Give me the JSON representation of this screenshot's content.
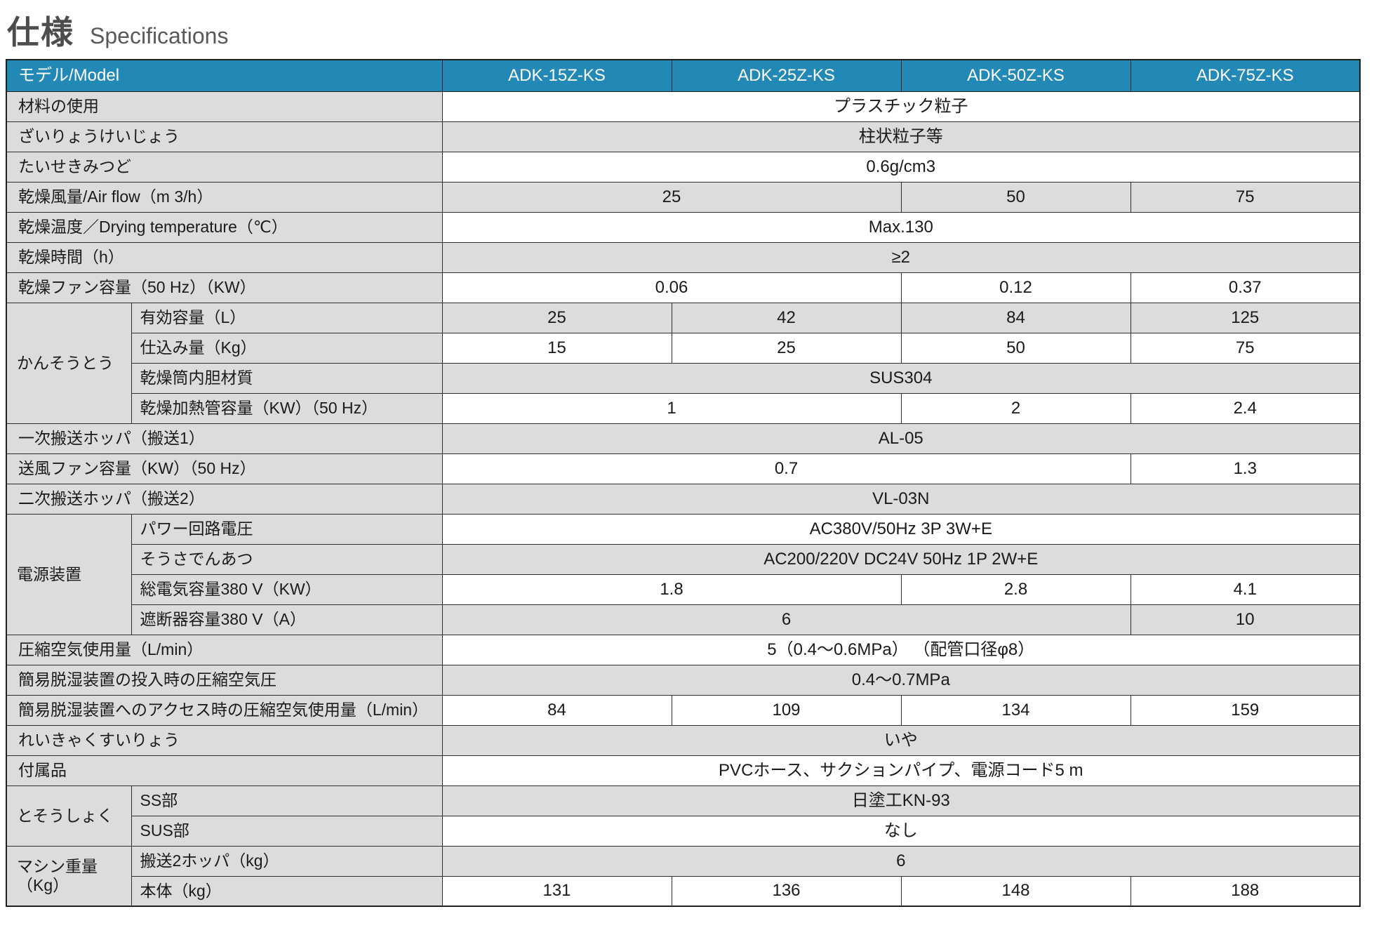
{
  "page": {
    "title_ja": "仕様",
    "title_en": "Specifications"
  },
  "colors": {
    "header_bg": "#2289b6",
    "header_text": "#ffffff",
    "row_gray": "#dcdcdc",
    "row_white": "#ffffff",
    "border": "#2e2e2e",
    "title_color": "#4d4d4d",
    "subtitle_color": "#595959"
  },
  "table": {
    "header": {
      "label": "モデル/Model",
      "models": [
        "ADK-15Z-KS",
        "ADK-25Z-KS",
        "ADK-50Z-KS",
        "ADK-75Z-KS"
      ]
    },
    "rows": [
      {
        "label": "材料の使用",
        "shade": "white",
        "cells": [
          {
            "text": "プラスチック粒子",
            "span": 4
          }
        ]
      },
      {
        "label": "ざいりょうけいじょう",
        "shade": "gray",
        "cells": [
          {
            "text": "柱状粒子等",
            "span": 4
          }
        ]
      },
      {
        "label": "たいせきみつど",
        "shade": "white",
        "cells": [
          {
            "text": "0.6g/cm3",
            "span": 4
          }
        ]
      },
      {
        "label": "乾燥風量/Air flow（m 3/h）",
        "shade": "gray",
        "cells": [
          {
            "text": "25",
            "span": 2
          },
          {
            "text": "50",
            "span": 1
          },
          {
            "text": "75",
            "span": 1
          }
        ]
      },
      {
        "label": "乾燥温度／Drying temperature（℃）",
        "shade": "white",
        "cells": [
          {
            "text": "Max.130",
            "span": 4
          }
        ]
      },
      {
        "label": "乾燥時間（h）",
        "shade": "gray",
        "cells": [
          {
            "text": "≥2",
            "span": 4
          }
        ]
      },
      {
        "label": "乾燥ファン容量（50 Hz）（KW）",
        "shade": "white",
        "cells": [
          {
            "text": "0.06",
            "span": 2
          },
          {
            "text": "0.12",
            "span": 1
          },
          {
            "text": "0.37",
            "span": 1
          }
        ]
      },
      {
        "group": {
          "label": "かんそうとう",
          "rowspan": 4
        },
        "label": "有効容量（L）",
        "shade": "gray",
        "cells": [
          {
            "text": "25",
            "span": 1
          },
          {
            "text": "42",
            "span": 1
          },
          {
            "text": "84",
            "span": 1
          },
          {
            "text": "125",
            "span": 1
          }
        ]
      },
      {
        "in_group": true,
        "label": "仕込み量（Kg）",
        "shade": "white",
        "cells": [
          {
            "text": "15",
            "span": 1
          },
          {
            "text": "25",
            "span": 1
          },
          {
            "text": "50",
            "span": 1
          },
          {
            "text": "75",
            "span": 1
          }
        ]
      },
      {
        "in_group": true,
        "label": "乾燥筒内胆材質",
        "shade": "gray",
        "cells": [
          {
            "text": "SUS304",
            "span": 4
          }
        ]
      },
      {
        "in_group": true,
        "label": "乾燥加熱管容量（KW）（50 Hz）",
        "shade": "white",
        "cells": [
          {
            "text": "1",
            "span": 2
          },
          {
            "text": "2",
            "span": 1
          },
          {
            "text": "2.4",
            "span": 1
          }
        ]
      },
      {
        "label": "一次搬送ホッパ（搬送1）",
        "shade": "gray",
        "cells": [
          {
            "text": "AL-05",
            "span": 4
          }
        ]
      },
      {
        "label": "送風ファン容量（KW）（50 Hz）",
        "shade": "white",
        "cells": [
          {
            "text": "0.7",
            "span": 3
          },
          {
            "text": "1.3",
            "span": 1
          }
        ]
      },
      {
        "label": "二次搬送ホッパ（搬送2）",
        "shade": "gray",
        "cells": [
          {
            "text": "VL-03N",
            "span": 4
          }
        ]
      },
      {
        "group": {
          "label": "電源装置",
          "rowspan": 4
        },
        "label": "パワー回路電圧",
        "shade": "white",
        "cells": [
          {
            "text": "AC380V/50Hz 3P 3W+E",
            "span": 4
          }
        ]
      },
      {
        "in_group": true,
        "label": "そうさでんあつ",
        "shade": "gray",
        "cells": [
          {
            "text": "AC200/220V DC24V 50Hz 1P 2W+E",
            "span": 4
          }
        ]
      },
      {
        "in_group": true,
        "label": "総電気容量380 V（KW）",
        "shade": "white",
        "cells": [
          {
            "text": "1.8",
            "span": 2
          },
          {
            "text": "2.8",
            "span": 1
          },
          {
            "text": "4.1",
            "span": 1
          }
        ]
      },
      {
        "in_group": true,
        "label": "遮断器容量380 V（A）",
        "shade": "gray",
        "cells": [
          {
            "text": "6",
            "span": 3
          },
          {
            "text": "10",
            "span": 1
          }
        ]
      },
      {
        "label": "圧縮空気使用量（L/min）",
        "shade": "white",
        "cells": [
          {
            "text": "5（0.4～0.6MPa） （配管口径φ8）",
            "span": 4
          }
        ]
      },
      {
        "label": "簡易脱湿装置の投入時の圧縮空気圧",
        "shade": "gray",
        "cells": [
          {
            "text": "0.4～0.7MPa",
            "span": 4
          }
        ]
      },
      {
        "label": "簡易脱湿装置へのアクセス時の圧縮空気使用量（L/min）",
        "shade": "white",
        "cells": [
          {
            "text": "84",
            "span": 1
          },
          {
            "text": "109",
            "span": 1
          },
          {
            "text": "134",
            "span": 1
          },
          {
            "text": "159",
            "span": 1
          }
        ]
      },
      {
        "label": "れいきゃくすいりょう",
        "shade": "gray",
        "cells": [
          {
            "text": "いや",
            "span": 4
          }
        ]
      },
      {
        "label": "付属品",
        "shade": "white",
        "cells": [
          {
            "text": "PVCホース、サクションパイプ、電源コード5 m",
            "span": 4
          }
        ]
      },
      {
        "group": {
          "label": "とそうしょく",
          "rowspan": 2
        },
        "label": "SS部",
        "shade": "gray",
        "cells": [
          {
            "text": "日塗工KN-93",
            "span": 4
          }
        ]
      },
      {
        "in_group": true,
        "label": "SUS部",
        "shade": "white",
        "cells": [
          {
            "text": "なし",
            "span": 4
          }
        ]
      },
      {
        "group": {
          "label": "マシン重量（Kg）",
          "rowspan": 2
        },
        "label": "搬送2ホッパ（kg）",
        "shade": "gray",
        "cells": [
          {
            "text": "6",
            "span": 4
          }
        ]
      },
      {
        "in_group": true,
        "label": "本体（kg）",
        "shade": "white",
        "cells": [
          {
            "text": "131",
            "span": 1
          },
          {
            "text": "136",
            "span": 1
          },
          {
            "text": "148",
            "span": 1
          },
          {
            "text": "188",
            "span": 1
          }
        ]
      }
    ]
  }
}
